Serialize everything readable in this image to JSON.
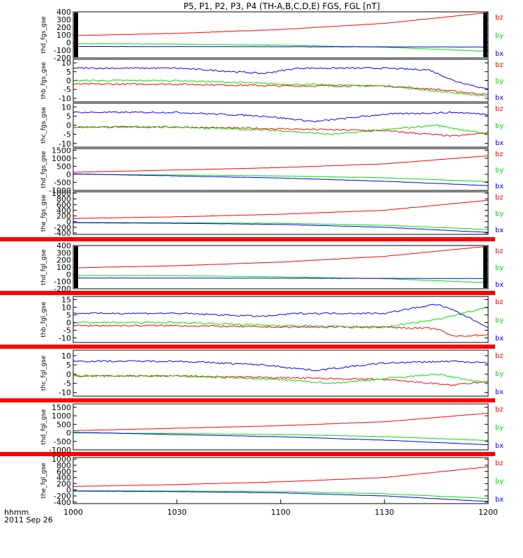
{
  "title": "P5, P1, P2, P3, P4 (TH-A,B,C,D,E) FGS, FGL [nT]",
  "time_axis": {
    "ticks": [
      "1000",
      "1030",
      "1100",
      "1130",
      "1200"
    ],
    "tick_values": [
      0,
      30,
      60,
      90,
      120
    ],
    "corner_label": "hhmm",
    "date_label": "2011 Sep 26"
  },
  "colors": {
    "bx": "#0000ff",
    "by": "#00dd00",
    "bz": "#ff0000",
    "bar": "#ff0000",
    "edge": "#000000"
  },
  "chart_data": [
    {
      "type": "line",
      "ylabel": "thd_fgs_gse",
      "yticks": [
        "400",
        "300",
        "200",
        "100",
        "0",
        "-100",
        "-200"
      ],
      "ylim": [
        -200,
        400
      ],
      "legend": [
        "bz",
        "by",
        "bx"
      ],
      "series": [
        {
          "name": "bz",
          "x": [
            0,
            30,
            60,
            90,
            120
          ],
          "values": [
            90,
            120,
            170,
            250,
            390
          ]
        },
        {
          "name": "by",
          "x": [
            0,
            30,
            60,
            90,
            120
          ],
          "values": [
            -15,
            -20,
            -35,
            -60,
            -115
          ]
        },
        {
          "name": "bx",
          "x": [
            0,
            30,
            60,
            90,
            120
          ],
          "values": [
            -50,
            -52,
            -54,
            -56,
            -58
          ]
        }
      ]
    },
    {
      "type": "line",
      "ylabel": "thb_fgs_gse",
      "yticks": [
        "10",
        "5",
        "0",
        "-5",
        "-10"
      ],
      "ylim": [
        -12,
        12
      ],
      "legend": [
        "bz",
        "by",
        "bx"
      ],
      "series": [
        {
          "name": "bz",
          "x": [
            0,
            30,
            60,
            90,
            105,
            120
          ],
          "values": [
            -2,
            -2,
            -3,
            -3,
            -5,
            -8
          ]
        },
        {
          "name": "by",
          "x": [
            0,
            30,
            60,
            90,
            105,
            120
          ],
          "values": [
            0,
            0,
            -2,
            -3,
            -6,
            -9
          ]
        },
        {
          "name": "bx",
          "x": [
            0,
            30,
            55,
            65,
            90,
            103,
            110,
            120
          ],
          "values": [
            7,
            7,
            4,
            7,
            7,
            6,
            0,
            -5
          ]
        }
      ]
    },
    {
      "type": "line",
      "ylabel": "thc_fgs_gse",
      "yticks": [
        "10",
        "5",
        "0",
        "-5",
        "-10"
      ],
      "ylim": [
        -12,
        12
      ],
      "legend": [
        "bz",
        "by",
        "bx"
      ],
      "series": [
        {
          "name": "bz",
          "x": [
            0,
            30,
            60,
            90,
            110,
            120
          ],
          "values": [
            -1,
            -1,
            -2,
            -3,
            -6,
            -4
          ]
        },
        {
          "name": "by",
          "x": [
            0,
            30,
            60,
            75,
            105,
            120
          ],
          "values": [
            -1,
            -1,
            -3,
            -5,
            0,
            -5
          ]
        },
        {
          "name": "bx",
          "x": [
            0,
            30,
            55,
            70,
            90,
            110,
            120
          ],
          "values": [
            7,
            7,
            5,
            2,
            6,
            7,
            6
          ]
        }
      ]
    },
    {
      "type": "line",
      "ylabel": "thd_fgs_gse",
      "yticks": [
        "1500",
        "1000",
        "500",
        "0",
        "-500",
        "-1000"
      ],
      "ylim": [
        -1000,
        1600
      ],
      "legend": [
        "bz",
        "by",
        "bx"
      ],
      "series": [
        {
          "name": "bz",
          "x": [
            0,
            30,
            60,
            90,
            120
          ],
          "values": [
            130,
            270,
            420,
            650,
            1150
          ]
        },
        {
          "name": "by",
          "x": [
            0,
            30,
            60,
            90,
            120
          ],
          "values": [
            0,
            -40,
            -100,
            -220,
            -450
          ]
        },
        {
          "name": "bx",
          "x": [
            0,
            30,
            60,
            90,
            120
          ],
          "values": [
            30,
            -100,
            -230,
            -430,
            -700
          ]
        }
      ]
    },
    {
      "type": "line",
      "ylabel": "the_fgs_gse",
      "yticks": [
        "1000",
        "800",
        "600",
        "400",
        "200",
        "0",
        "-200",
        "-400"
      ],
      "ylim": [
        -450,
        1050
      ],
      "legend": [
        "bz",
        "by",
        "bx"
      ],
      "series": [
        {
          "name": "bz",
          "x": [
            0,
            30,
            60,
            90,
            120
          ],
          "values": [
            110,
            170,
            260,
            400,
            750
          ]
        },
        {
          "name": "by",
          "x": [
            0,
            30,
            60,
            90,
            120
          ],
          "values": [
            -30,
            -40,
            -60,
            -130,
            -280
          ]
        },
        {
          "name": "bx",
          "x": [
            0,
            30,
            60,
            90,
            120
          ],
          "values": [
            -40,
            -60,
            -100,
            -200,
            -380
          ]
        }
      ]
    },
    {
      "type": "line",
      "ylabel": "thd_fgl_gse",
      "yticks": [
        "400",
        "300",
        "200",
        "100",
        "0",
        "-100",
        "-200"
      ],
      "ylim": [
        -200,
        400
      ],
      "legend": [
        "bz",
        "by",
        "bx"
      ],
      "series": [
        {
          "name": "bz",
          "x": [
            0,
            30,
            60,
            90,
            120
          ],
          "values": [
            90,
            120,
            170,
            250,
            390
          ]
        },
        {
          "name": "by",
          "x": [
            0,
            30,
            60,
            90,
            120
          ],
          "values": [
            -15,
            -20,
            -35,
            -60,
            -115
          ]
        },
        {
          "name": "bx",
          "x": [
            0,
            30,
            60,
            90,
            120
          ],
          "values": [
            -50,
            -52,
            -54,
            -56,
            -58
          ]
        }
      ]
    },
    {
      "type": "line",
      "ylabel": "thb_fgl_gse",
      "yticks": [
        "15",
        "10",
        "5",
        "0",
        "-5",
        "-10"
      ],
      "ylim": [
        -13,
        17
      ],
      "legend": [
        "bz",
        "by",
        "bx"
      ],
      "series": [
        {
          "name": "bz",
          "x": [
            0,
            30,
            60,
            90,
            105,
            110,
            120
          ],
          "values": [
            -2,
            -2,
            -3,
            -3,
            -4,
            -9,
            -8
          ]
        },
        {
          "name": "by",
          "x": [
            0,
            30,
            60,
            90,
            105,
            120
          ],
          "values": [
            0,
            0,
            -2,
            -3,
            2,
            10
          ]
        },
        {
          "name": "bx",
          "x": [
            0,
            30,
            55,
            65,
            90,
            105,
            110,
            120
          ],
          "values": [
            6,
            6,
            4,
            6,
            6,
            12,
            8,
            -3
          ]
        }
      ]
    },
    {
      "type": "line",
      "ylabel": "thc_fgl_gse",
      "yticks": [
        "10",
        "5",
        "0",
        "-5",
        "-10"
      ],
      "ylim": [
        -12,
        13
      ],
      "legend": [
        "bz",
        "by",
        "bx"
      ],
      "series": [
        {
          "name": "bz",
          "x": [
            0,
            30,
            60,
            90,
            110,
            120
          ],
          "values": [
            -1,
            -1,
            -2,
            -3,
            -6,
            -4
          ]
        },
        {
          "name": "by",
          "x": [
            0,
            30,
            60,
            75,
            105,
            120
          ],
          "values": [
            -1,
            -1,
            -3,
            -5,
            0,
            -5
          ]
        },
        {
          "name": "bx",
          "x": [
            0,
            30,
            55,
            70,
            90,
            110,
            120
          ],
          "values": [
            7,
            7,
            5,
            2,
            6,
            7,
            6
          ]
        }
      ]
    },
    {
      "type": "line",
      "ylabel": "thd_fgl_gse",
      "yticks": [
        "1500",
        "1000",
        "500",
        "0",
        "-500",
        "-1000"
      ],
      "ylim": [
        -1000,
        1700
      ],
      "legend": [
        "bz",
        "by",
        "bx"
      ],
      "series": [
        {
          "name": "bz",
          "x": [
            0,
            30,
            60,
            90,
            120
          ],
          "values": [
            130,
            270,
            420,
            650,
            1150
          ]
        },
        {
          "name": "by",
          "x": [
            0,
            30,
            60,
            90,
            120
          ],
          "values": [
            0,
            -40,
            -100,
            -220,
            -450
          ]
        },
        {
          "name": "bx",
          "x": [
            0,
            30,
            60,
            90,
            120
          ],
          "values": [
            30,
            -100,
            -230,
            -430,
            -700
          ]
        }
      ]
    },
    {
      "type": "line",
      "ylabel": "the_fgl_gse",
      "yticks": [
        "1000",
        "800",
        "600",
        "400",
        "200",
        "0",
        "-200",
        "-400"
      ],
      "ylim": [
        -450,
        1050
      ],
      "legend": [
        "bz",
        "by",
        "bx"
      ],
      "series": [
        {
          "name": "bz",
          "x": [
            0,
            30,
            60,
            90,
            120
          ],
          "values": [
            110,
            170,
            260,
            400,
            750
          ]
        },
        {
          "name": "by",
          "x": [
            0,
            30,
            60,
            90,
            120
          ],
          "values": [
            -30,
            -40,
            -60,
            -130,
            -280
          ]
        },
        {
          "name": "bx",
          "x": [
            0,
            30,
            60,
            90,
            120
          ],
          "values": [
            -40,
            -60,
            -100,
            -200,
            -380
          ]
        }
      ]
    }
  ]
}
